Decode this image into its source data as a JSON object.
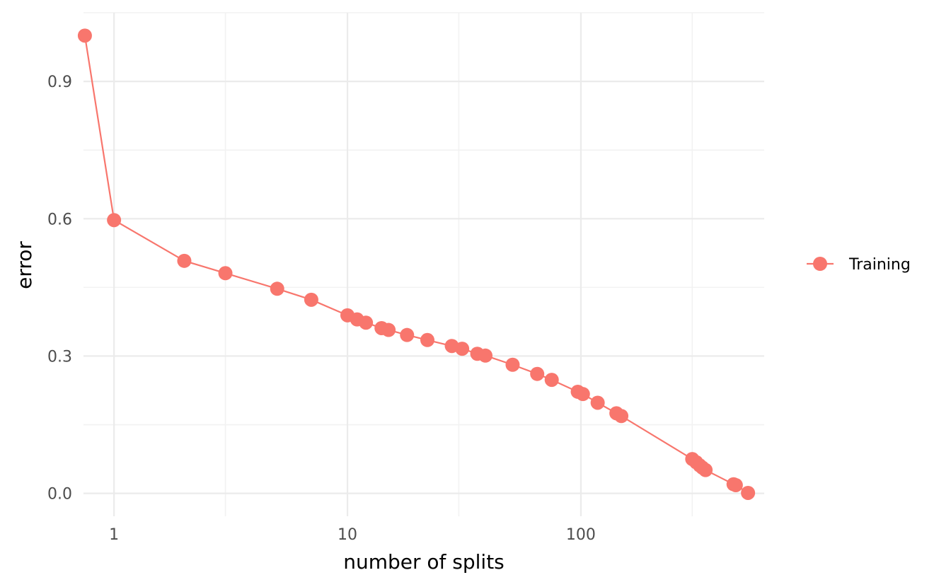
{
  "chart_data": {
    "type": "line",
    "xlabel": "number of splits",
    "ylabel": "error",
    "x_scale": "log10",
    "x_lim": [
      0.74,
      610
    ],
    "y_lim": [
      -0.05,
      1.05
    ],
    "x_ticks": [
      {
        "value": 1,
        "label": "1"
      },
      {
        "value": 10,
        "label": "10"
      },
      {
        "value": 100,
        "label": "100"
      }
    ],
    "y_ticks": [
      {
        "value": 0.0,
        "label": "0.0"
      },
      {
        "value": 0.3,
        "label": "0.3"
      },
      {
        "value": 0.6,
        "label": "0.6"
      },
      {
        "value": 0.9,
        "label": "0.9"
      }
    ],
    "x_minor_gridlines": [
      3,
      30,
      300
    ],
    "y_minor_gridlines": [
      0.15,
      0.45,
      0.75,
      1.05
    ],
    "grid": true,
    "legend_position": "right",
    "series": [
      {
        "name": "Training",
        "color": "#F8766D",
        "points": [
          {
            "x": 0.75,
            "y": 1.0
          },
          {
            "x": 1,
            "y": 0.597
          },
          {
            "x": 2,
            "y": 0.508
          },
          {
            "x": 3,
            "y": 0.481
          },
          {
            "x": 5,
            "y": 0.447
          },
          {
            "x": 7,
            "y": 0.423
          },
          {
            "x": 10,
            "y": 0.389
          },
          {
            "x": 11,
            "y": 0.38
          },
          {
            "x": 12,
            "y": 0.373
          },
          {
            "x": 14,
            "y": 0.361
          },
          {
            "x": 15,
            "y": 0.357
          },
          {
            "x": 18,
            "y": 0.346
          },
          {
            "x": 22,
            "y": 0.335
          },
          {
            "x": 28,
            "y": 0.322
          },
          {
            "x": 31,
            "y": 0.316
          },
          {
            "x": 36,
            "y": 0.305
          },
          {
            "x": 39,
            "y": 0.301
          },
          {
            "x": 51,
            "y": 0.281
          },
          {
            "x": 65,
            "y": 0.261
          },
          {
            "x": 75,
            "y": 0.248
          },
          {
            "x": 97,
            "y": 0.222
          },
          {
            "x": 102,
            "y": 0.217
          },
          {
            "x": 118,
            "y": 0.198
          },
          {
            "x": 142,
            "y": 0.175
          },
          {
            "x": 149,
            "y": 0.169
          },
          {
            "x": 300,
            "y": 0.075
          },
          {
            "x": 312,
            "y": 0.068
          },
          {
            "x": 323,
            "y": 0.061
          },
          {
            "x": 332,
            "y": 0.056
          },
          {
            "x": 342,
            "y": 0.051
          },
          {
            "x": 451,
            "y": 0.02
          },
          {
            "x": 461,
            "y": 0.018
          },
          {
            "x": 520,
            "y": 0.001
          }
        ]
      }
    ]
  }
}
